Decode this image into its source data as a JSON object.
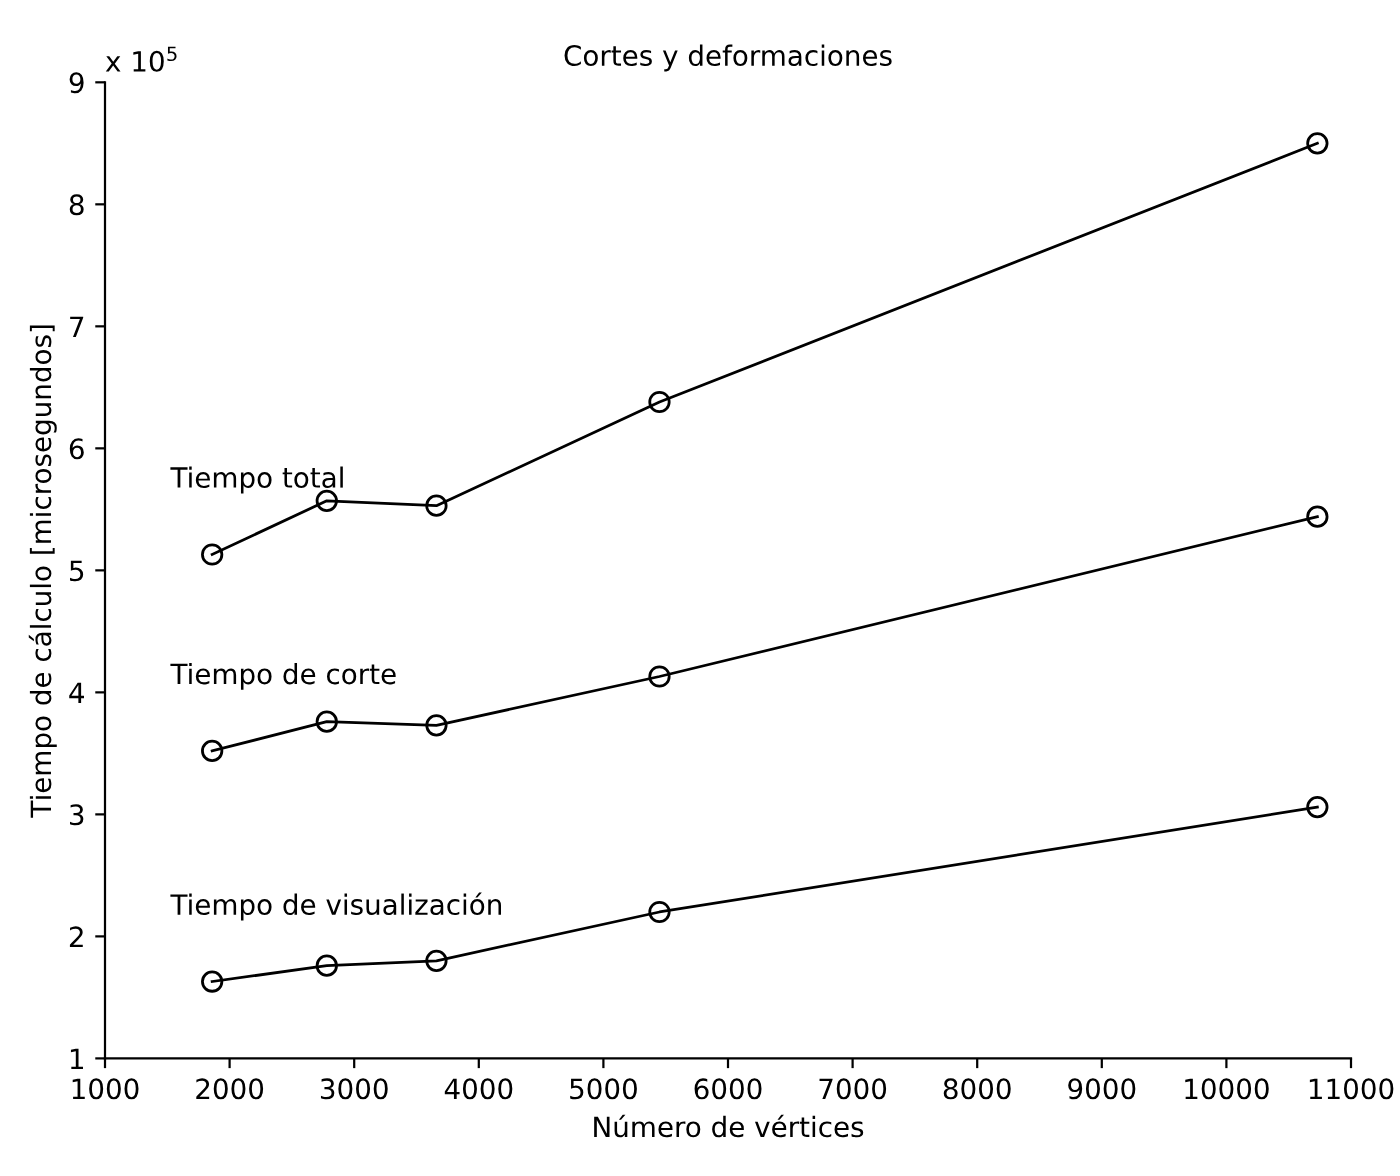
{
  "chart_data": {
    "type": "line",
    "title": "Cortes y deformaciones",
    "xlabel": "Número de vértices",
    "ylabel": "Tiempo de cálculo [microsegundos]",
    "annotations": [
      "x 10$^{5}$"
    ],
    "x": [
      1860,
      2780,
      3660,
      5450,
      10730
    ],
    "series": [
      {
        "name": "Tiempo total",
        "color": "#000000",
        "values": [
          5.13,
          5.57,
          5.53,
          6.38,
          8.5
        ]
      },
      {
        "name": "Tiempo de corte",
        "color": "#000000",
        "values": [
          3.52,
          3.76,
          3.73,
          4.13,
          5.44
        ]
      },
      {
        "name": "Tiempo de visualización",
        "color": "#000000",
        "values": [
          1.63,
          1.76,
          1.8,
          2.2,
          3.06
        ]
      }
    ],
    "xlim": [
      1000,
      11000
    ],
    "ylim": [
      1,
      9
    ],
    "xticks": [
      1000,
      2000,
      3000,
      4000,
      5000,
      6000,
      7000,
      8000,
      9000,
      10000,
      11000
    ],
    "yticks": [
      1,
      2,
      3,
      4,
      5,
      6,
      7,
      8,
      9
    ],
    "marker": "circle",
    "line_style": "solid",
    "grid": false,
    "legend": false
  }
}
